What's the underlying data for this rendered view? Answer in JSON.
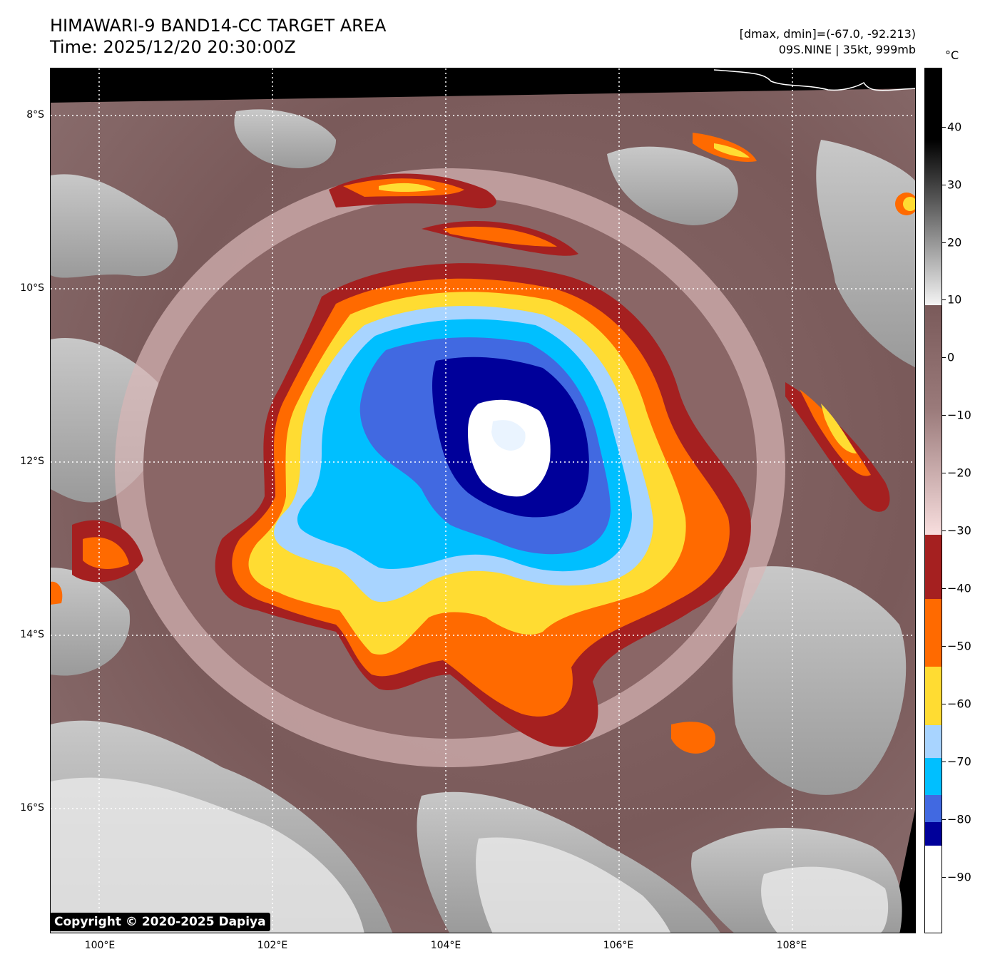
{
  "header": {
    "title_line1": "HIMAWARI-9 BAND14-CC TARGET AREA",
    "title_line2": "Time: 2025/12/20 20:30:00Z",
    "meta_line1": "[dmax, dmin]=(-67.0, -92.213)",
    "meta_line2": "09S.NINE | 35kt, 999mb"
  },
  "map": {
    "lat_labels": [
      "8°S",
      "10°S",
      "12°S",
      "14°S",
      "16°S"
    ],
    "lon_labels": [
      "100°E",
      "102°E",
      "104°E",
      "106°E",
      "108°E"
    ],
    "storm_center": {
      "lon": 104.85,
      "lat": -11.9
    },
    "copyright": "Copyright © 2020-2025 Dapiya"
  },
  "colorbar": {
    "unit": "°C",
    "labels": [
      "40",
      "30",
      "20",
      "10",
      "0",
      "−10",
      "−20",
      "−30",
      "−40",
      "−50",
      "−60",
      "−70",
      "−80",
      "−90"
    ],
    "colors": {
      "warm_top": "#000000",
      "gray_10": "#e8e8e8",
      "mauve_8": "#7a5a5a",
      "pink_m30": "#f5dada",
      "red": "#a52020",
      "orange": "#ff6a00",
      "yellow": "#ffdc32",
      "light_blue": "#a8d4ff",
      "cyan": "#00bfff",
      "royal_blue": "#4169e1",
      "navy": "#00009a",
      "white": "#ffffff"
    }
  }
}
